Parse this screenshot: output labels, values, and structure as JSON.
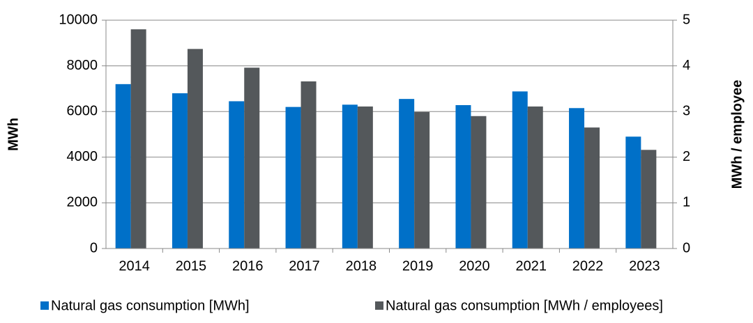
{
  "chart_data": {
    "type": "bar",
    "categories": [
      "2014",
      "2015",
      "2016",
      "2017",
      "2018",
      "2019",
      "2020",
      "2021",
      "2022",
      "2023"
    ],
    "series": [
      {
        "name": "Natural gas consumption [MWh]",
        "color": "#0070c8",
        "values": [
          7200,
          6800,
          6450,
          6200,
          6300,
          6550,
          6280,
          6880,
          6150,
          4900
        ]
      },
      {
        "name": "Natural gas consumption [MWh / employees]",
        "color": "#54585b",
        "axis": "y2",
        "values": [
          4.8,
          4.37,
          3.96,
          3.66,
          3.11,
          2.99,
          2.9,
          3.11,
          2.65,
          2.16
        ]
      }
    ],
    "ylabel": "MWh",
    "y2label": "MWh / employee",
    "ylim": [
      0,
      10000
    ],
    "yticks": [
      0,
      2000,
      4000,
      6000,
      8000,
      10000
    ],
    "y2lim": [
      0,
      5
    ],
    "y2ticks": [
      0,
      1,
      2,
      3,
      4,
      5
    ],
    "grid": true,
    "legend": "bottom"
  }
}
